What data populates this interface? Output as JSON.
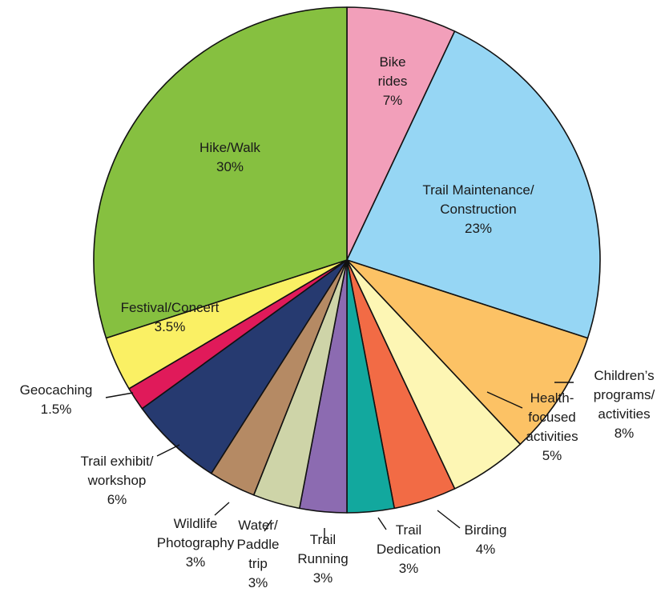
{
  "chart_data": {
    "type": "pie",
    "title": "",
    "start_angle_deg": 0,
    "direction": "clockwise",
    "slices": [
      {
        "label": "Bike\nrides",
        "percent_label": "7%",
        "value": 7,
        "color": "#f29fba"
      },
      {
        "label": "Trail Maintenance/\nConstruction",
        "percent_label": "23%",
        "value": 23,
        "color": "#96d6f4"
      },
      {
        "label": "Children’s\nprograms/\nactivities",
        "percent_label": "8%",
        "value": 8,
        "color": "#fcc265"
      },
      {
        "label": "Health-\nfocused\nactivities",
        "percent_label": "5%",
        "value": 5,
        "color": "#fdf6b4"
      },
      {
        "label": "Birding",
        "percent_label": "4%",
        "value": 4,
        "color": "#f26b45"
      },
      {
        "label": "Trail\nDedication",
        "percent_label": "3%",
        "value": 3,
        "color": "#12a89e"
      },
      {
        "label": "Trail\nRunning",
        "percent_label": "3%",
        "value": 3,
        "color": "#8c6bb1"
      },
      {
        "label": "Water/\nPaddle\ntrip",
        "percent_label": "3%",
        "value": 3,
        "color": "#ced4a8"
      },
      {
        "label": "Wildlife\nPhotography",
        "percent_label": "3%",
        "value": 3,
        "color": "#b58a64"
      },
      {
        "label": "Trail exhibit/\nworkshop",
        "percent_label": "6%",
        "value": 6,
        "color": "#263a70"
      },
      {
        "label": "Geocaching",
        "percent_label": "1.5%",
        "value": 1.5,
        "color": "#e01a5a"
      },
      {
        "label": "Festival/Concert",
        "percent_label": "3.5%",
        "value": 3.5,
        "color": "#faf064"
      },
      {
        "label": "Hike/Walk",
        "percent_label": "30%",
        "value": 30,
        "color": "#86c040"
      }
    ]
  }
}
